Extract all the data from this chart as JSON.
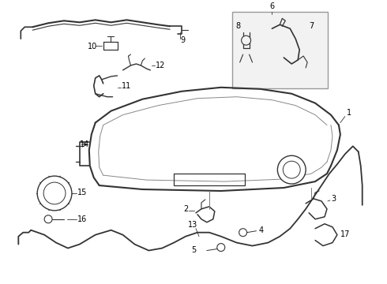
{
  "bg_color": "#ffffff",
  "line_color": "#333333",
  "text_color": "#000000",
  "fs": 7,
  "fig_w": 4.9,
  "fig_h": 3.6,
  "dpi": 100
}
